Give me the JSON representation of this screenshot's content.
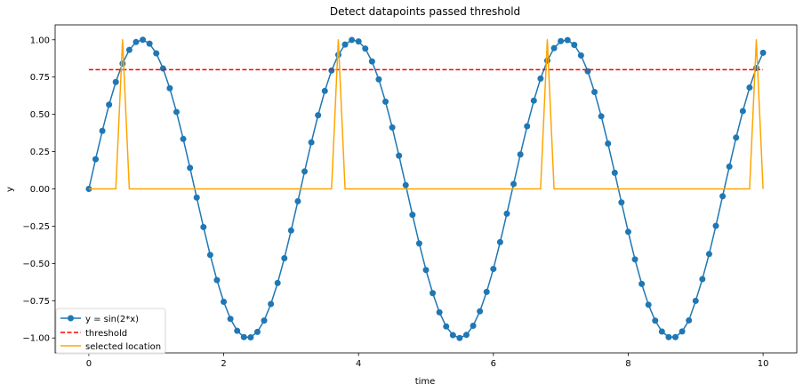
{
  "chart_data": {
    "type": "line",
    "title": "Detect datapoints passed threshold",
    "xlabel": "time",
    "ylabel": "y",
    "xlim": [
      -0.5,
      10.5
    ],
    "ylim": [
      -1.1,
      1.1
    ],
    "xticks": [
      0,
      2,
      4,
      6,
      8,
      10
    ],
    "xtick_labels": [
      "0",
      "2",
      "4",
      "6",
      "8",
      "10"
    ],
    "yticks": [
      -1.0,
      -0.75,
      -0.5,
      -0.25,
      0.0,
      0.25,
      0.5,
      0.75,
      1.0
    ],
    "ytick_labels": [
      "−1.00",
      "−0.75",
      "−0.50",
      "−0.25",
      "0.00",
      "0.25",
      "0.50",
      "0.75",
      "1.00"
    ],
    "grid": false,
    "legend_position": "lower-left",
    "series": [
      {
        "name": "y = sin(2*x)",
        "style": "line-with-markers",
        "color": "#1f77b4",
        "x": [
          0,
          0.1,
          0.2,
          0.3,
          0.4,
          0.5,
          0.6,
          0.7,
          0.8,
          0.9,
          1.0,
          1.1,
          1.2,
          1.3,
          1.4,
          1.5,
          1.6,
          1.7,
          1.8,
          1.9,
          2.0,
          2.1,
          2.2,
          2.3,
          2.4,
          2.5,
          2.6,
          2.7,
          2.8,
          2.9,
          3.0,
          3.1,
          3.2,
          3.3,
          3.4,
          3.5,
          3.6,
          3.7,
          3.8,
          3.9,
          4.0,
          4.1,
          4.2,
          4.3,
          4.4,
          4.5,
          4.6,
          4.7,
          4.8,
          4.9,
          5.0,
          5.1,
          5.2,
          5.3,
          5.4,
          5.5,
          5.6,
          5.7,
          5.8,
          5.9,
          6.0,
          6.1,
          6.2,
          6.3,
          6.4,
          6.5,
          6.6,
          6.7,
          6.8,
          6.9,
          7.0,
          7.1,
          7.2,
          7.3,
          7.4,
          7.5,
          7.6,
          7.7,
          7.8,
          7.9,
          8.0,
          8.1,
          8.2,
          8.3,
          8.4,
          8.5,
          8.6,
          8.7,
          8.8,
          8.9,
          9.0,
          9.1,
          9.2,
          9.3,
          9.4,
          9.5,
          9.6,
          9.7,
          9.8,
          9.9,
          10.0
        ],
        "y": [
          0.0,
          0.199,
          0.389,
          0.565,
          0.717,
          0.841,
          0.932,
          0.985,
          1.0,
          0.974,
          0.909,
          0.808,
          0.675,
          0.516,
          0.335,
          0.141,
          -0.058,
          -0.256,
          -0.443,
          -0.612,
          -0.757,
          -0.872,
          -0.952,
          -0.994,
          -0.996,
          -0.959,
          -0.883,
          -0.772,
          -0.631,
          -0.465,
          -0.279,
          -0.083,
          0.117,
          0.312,
          0.494,
          0.657,
          0.794,
          0.899,
          0.968,
          0.999,
          0.989,
          0.941,
          0.855,
          0.735,
          0.585,
          0.412,
          0.223,
          0.025,
          -0.174,
          -0.366,
          -0.544,
          -0.699,
          -0.828,
          -0.923,
          -0.981,
          -1.0,
          -0.979,
          -0.918,
          -0.821,
          -0.691,
          -0.537,
          -0.357,
          -0.166,
          0.033,
          0.231,
          0.42,
          0.592,
          0.74,
          0.86,
          0.944,
          0.991,
          0.998,
          0.966,
          0.895,
          0.789,
          0.65,
          0.487,
          0.304,
          0.108,
          -0.091,
          -0.288,
          -0.473,
          -0.637,
          -0.777,
          -0.884,
          -0.957,
          -0.994,
          -0.994,
          -0.956,
          -0.882,
          -0.751,
          -0.605,
          -0.437,
          -0.248,
          -0.049,
          0.15,
          0.344,
          0.522,
          0.68,
          0.811,
          0.913
        ]
      },
      {
        "name": "threshold",
        "style": "dashed",
        "color": "#ff0000",
        "x": [
          0,
          10
        ],
        "y": [
          0.8,
          0.8
        ]
      },
      {
        "name": "selected location",
        "style": "line",
        "color": "#ffa500",
        "x": [
          0,
          0.4,
          0.5,
          0.6,
          3.6,
          3.7,
          3.8,
          6.7,
          6.8,
          6.9,
          9.8,
          9.9,
          10.0
        ],
        "y": [
          0,
          0,
          1,
          0,
          0,
          1,
          0,
          0,
          1,
          0,
          0,
          1,
          0
        ]
      }
    ]
  }
}
